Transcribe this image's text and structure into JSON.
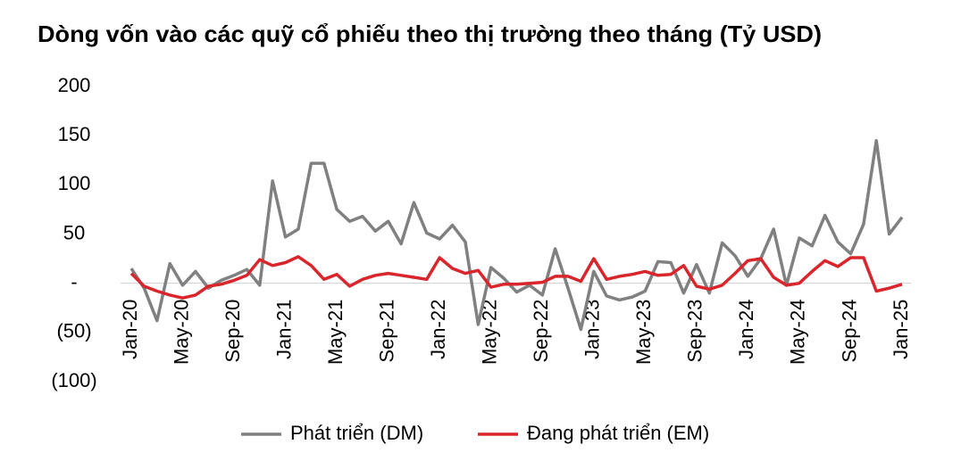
{
  "chart_data": {
    "type": "line",
    "title": "Dòng vốn vào các quỹ cổ phiếu theo thị trường theo tháng (Tỷ USD)",
    "categories": [
      "Jan-20",
      null,
      null,
      null,
      "May-20",
      null,
      null,
      null,
      "Sep-20",
      null,
      null,
      null,
      "Jan-21",
      null,
      null,
      null,
      "May-21",
      null,
      null,
      null,
      "Sep-21",
      null,
      null,
      null,
      "Jan-22",
      null,
      null,
      null,
      "May-22",
      null,
      null,
      null,
      "Sep-22",
      null,
      null,
      null,
      "Jan-23",
      null,
      null,
      null,
      "May-23",
      null,
      null,
      null,
      "Sep-23",
      null,
      null,
      null,
      "Jan-24",
      null,
      null,
      null,
      "May-24",
      null,
      null,
      null,
      "Sep-24",
      null,
      null,
      null,
      "Jan-25"
    ],
    "series": [
      {
        "name": "Phát triển (DM)",
        "color": "#808080",
        "values": [
          15,
          -5,
          -38,
          20,
          -2,
          12,
          -5,
          3,
          8,
          14,
          -2,
          104,
          47,
          55,
          122,
          122,
          75,
          63,
          68,
          53,
          63,
          40,
          82,
          51,
          45,
          59,
          42,
          -42,
          16,
          5,
          -9,
          -2,
          -12,
          35,
          -5,
          -47,
          12,
          -13,
          -17,
          -14,
          -8,
          22,
          21,
          -10,
          19,
          -10,
          41,
          28,
          7,
          25,
          55,
          -2,
          46,
          38,
          69,
          42,
          30,
          60,
          145,
          50,
          67
        ]
      },
      {
        "name": "Đang phát triển (EM)",
        "color": "#d9262c",
        "values": [
          10,
          -3,
          -8,
          -12,
          -15,
          -12,
          -3,
          -1,
          3,
          8,
          24,
          18,
          21,
          27,
          18,
          4,
          9,
          -3,
          4,
          8,
          10,
          8,
          6,
          4,
          26,
          15,
          10,
          13,
          -4,
          -1,
          -1,
          0,
          1,
          7,
          7,
          2,
          25,
          4,
          7,
          9,
          12,
          8,
          9,
          18,
          -3,
          -6,
          -2,
          10,
          23,
          25,
          6,
          -2,
          0,
          12,
          23,
          17,
          26,
          26,
          -8,
          -5,
          -1
        ]
      }
    ],
    "ylim": [
      -100,
      200
    ],
    "yticks": [
      200,
      150,
      100,
      50,
      {
        "value": 0,
        "label": "-"
      },
      {
        "value": -50,
        "label": "(50)"
      },
      {
        "value": -100,
        "label": "(100)"
      }
    ]
  }
}
